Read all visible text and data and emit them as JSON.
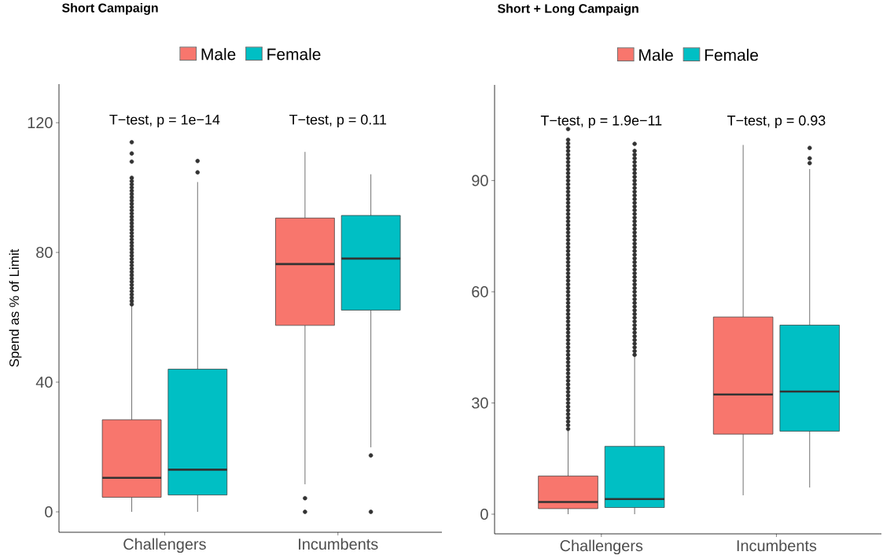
{
  "chart_data": [
    {
      "type": "box",
      "title": "Short Campaign",
      "ylabel": "Spend as % of Limit",
      "categories": [
        "Challengers",
        "Incumbents"
      ],
      "ylim": [
        -6.3,
        131.9
      ],
      "yticks": [
        0,
        40,
        80,
        120
      ],
      "legend": "top",
      "grid": false,
      "annotations": [
        "T−test, p = 1e−14",
        "T−test, p = 0.11"
      ],
      "series": [
        {
          "name": "Male",
          "color": "#f8766d",
          "boxes": [
            {
              "low": 0,
              "q1": 4.5,
              "median": 10.5,
              "q3": 28.4,
              "high": 63.6,
              "outliers": [
                64,
                65,
                66,
                67,
                68,
                69,
                70,
                71,
                72,
                73,
                74,
                75,
                76,
                77,
                78,
                79,
                80,
                81,
                82,
                83,
                84,
                85,
                86,
                87,
                88,
                89,
                90,
                91,
                92,
                93,
                94,
                95,
                96,
                97,
                98,
                99,
                100,
                101,
                102,
                103,
                108,
                110.5,
                114
              ]
            },
            {
              "low": 8.5,
              "q1": 57.5,
              "median": 76.4,
              "q3": 90.6,
              "high": 111,
              "outliers": [
                4.2,
                0
              ]
            }
          ]
        },
        {
          "name": "Female",
          "color": "#00bfc4",
          "boxes": [
            {
              "low": 0,
              "q1": 5.2,
              "median": 13,
              "q3": 44,
              "high": 101.7,
              "outliers": [
                104.7,
                108.2
              ]
            },
            {
              "low": 19.9,
              "q1": 62.2,
              "median": 78.1,
              "q3": 91.4,
              "high": 104.1,
              "outliers": [
                17.4,
                0
              ]
            }
          ]
        }
      ]
    },
    {
      "type": "box",
      "title": "Short + Long Campaign",
      "categories": [
        "Challengers",
        "Incumbents"
      ],
      "ylim": [
        -5.3,
        115.8
      ],
      "yticks": [
        0,
        30,
        60,
        90
      ],
      "legend": "top",
      "grid": false,
      "annotations": [
        "T−test, p = 1.9e−11",
        "T−test, p = 0.93"
      ],
      "series": [
        {
          "name": "Male",
          "color": "#f8766d",
          "boxes": [
            {
              "low": 0,
              "q1": 1.5,
              "median": 3.3,
              "q3": 10.3,
              "high": 22.6,
              "outliers": [
                23,
                24,
                25,
                26,
                27,
                28,
                29,
                30,
                31,
                32,
                33,
                34,
                35,
                36,
                37,
                38,
                39,
                40,
                41,
                42,
                43,
                44,
                45,
                46,
                47,
                48,
                49,
                50,
                51,
                52,
                53,
                54,
                55,
                56,
                57,
                58,
                59,
                60,
                61,
                62,
                63,
                64,
                65,
                66,
                67,
                68,
                69,
                70,
                71,
                72,
                73,
                74,
                75,
                76,
                77,
                78,
                79,
                80,
                81,
                82,
                83,
                84,
                85,
                86,
                87,
                88,
                89,
                90,
                91,
                92,
                93,
                94,
                95,
                96,
                97,
                98,
                99,
                100,
                101,
                103.9
              ]
            },
            {
              "low": 5.1,
              "q1": 21.6,
              "median": 32.3,
              "q3": 53.2,
              "high": 99.6
            }
          ]
        },
        {
          "name": "Female",
          "color": "#00bfc4",
          "boxes": [
            {
              "low": 0,
              "q1": 1.8,
              "median": 4.1,
              "q3": 18.3,
              "high": 42.9,
              "outliers": [
                43,
                44,
                45,
                46,
                47,
                48,
                49,
                50,
                51,
                52,
                53,
                54,
                55,
                56,
                57,
                58,
                59,
                60,
                61,
                62,
                63,
                64,
                65,
                66,
                67,
                68,
                69,
                70,
                71,
                72,
                73,
                74,
                75,
                76,
                77,
                78,
                79,
                80,
                81,
                82,
                83,
                84,
                85,
                86,
                87,
                88,
                89,
                90,
                91,
                92,
                93,
                94,
                95,
                96,
                97,
                98,
                99.9
              ]
            },
            {
              "low": 7.2,
              "q1": 22.4,
              "median": 33.1,
              "q3": 51,
              "high": 93.1,
              "outliers": [
                94.7,
                96,
                98.8
              ]
            }
          ]
        }
      ]
    }
  ]
}
